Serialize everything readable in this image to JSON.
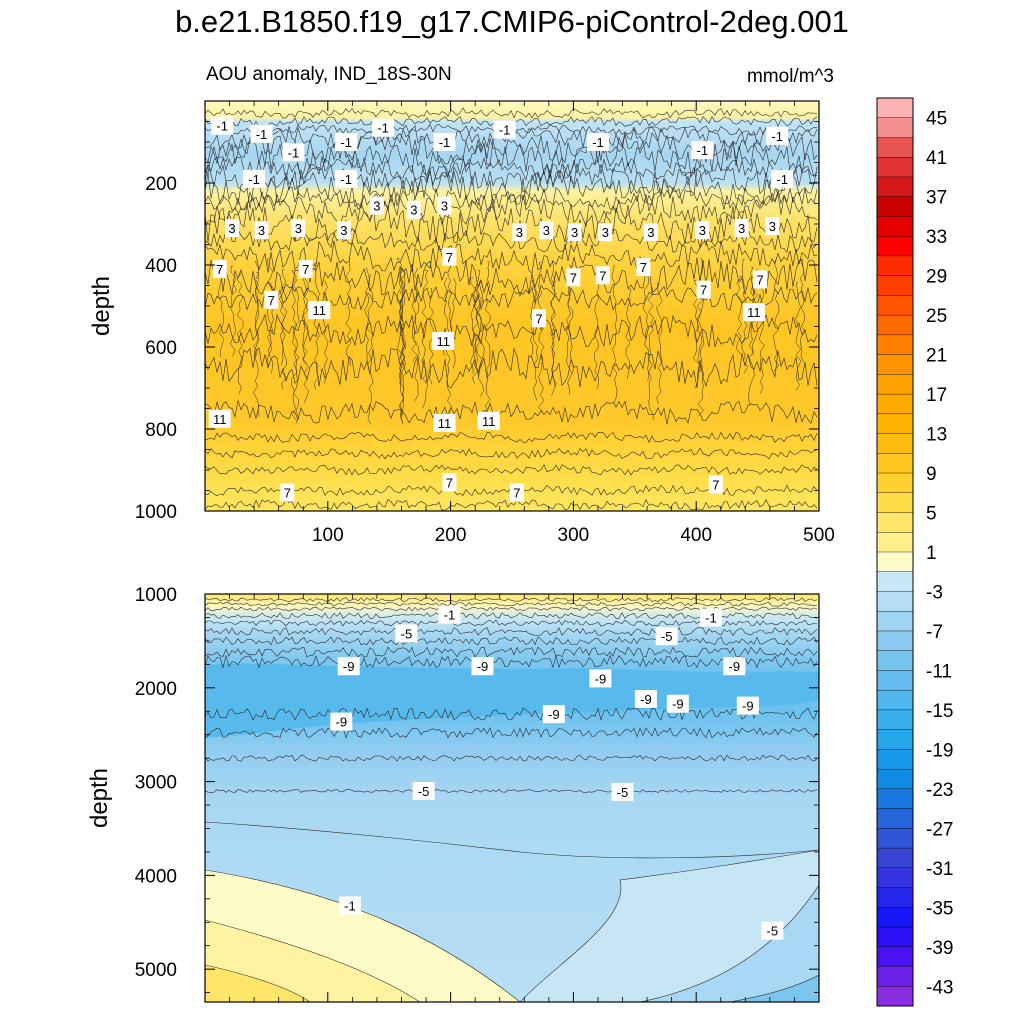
{
  "title": "b.e21.B1850.f19_g17.CMIP6-piControl-2deg.001",
  "subtitle": "AOU anomaly, IND_18S-30N",
  "units": "mmol/m^3",
  "chart_data": [
    {
      "type": "contour",
      "panel": "upper",
      "title": "AOU anomaly, IND_18S-30N",
      "xlabel": "",
      "ylabel": "depth",
      "xlim": [
        0,
        500
      ],
      "ylim": [
        1000,
        0
      ],
      "x_ticks": [
        100,
        200,
        300,
        400,
        500
      ],
      "x_tick_labels": [
        "100",
        "200",
        "300",
        "400",
        "500"
      ],
      "y_ticks": [
        200,
        400,
        600,
        800,
        1000
      ],
      "y_tick_labels": [
        "200",
        "400",
        "600",
        "800",
        "1000"
      ],
      "bands": [
        {
          "depth_top": 0,
          "depth_bottom": 45,
          "value": 1
        },
        {
          "depth_top": 45,
          "depth_bottom": 240,
          "value": -3
        },
        {
          "depth_top": 240,
          "depth_bottom": 330,
          "value": 5
        },
        {
          "depth_top": 330,
          "depth_bottom": 450,
          "value": 9
        },
        {
          "depth_top": 450,
          "depth_bottom": 830,
          "value": 12
        },
        {
          "depth_top": 830,
          "depth_bottom": 930,
          "value": 9
        },
        {
          "depth_top": 930,
          "depth_bottom": 1000,
          "value": 6
        }
      ],
      "contour_labels": [
        {
          "x": 14,
          "depth": 60,
          "text": "-1"
        },
        {
          "x": 46,
          "depth": 80,
          "text": "-1"
        },
        {
          "x": 72,
          "depth": 125,
          "text": "-1"
        },
        {
          "x": 115,
          "depth": 100,
          "text": "-1"
        },
        {
          "x": 145,
          "depth": 65,
          "text": "-1"
        },
        {
          "x": 195,
          "depth": 100,
          "text": "-1"
        },
        {
          "x": 244,
          "depth": 70,
          "text": "-1"
        },
        {
          "x": 320,
          "depth": 100,
          "text": "-1"
        },
        {
          "x": 405,
          "depth": 120,
          "text": "-1"
        },
        {
          "x": 466,
          "depth": 85,
          "text": "-1"
        },
        {
          "x": 40,
          "depth": 190,
          "text": "-1"
        },
        {
          "x": 115,
          "depth": 190,
          "text": "-1"
        },
        {
          "x": 470,
          "depth": 190,
          "text": "-1"
        },
        {
          "x": 140,
          "depth": 255,
          "text": "3"
        },
        {
          "x": 170,
          "depth": 265,
          "text": "3"
        },
        {
          "x": 195,
          "depth": 255,
          "text": "3"
        },
        {
          "x": 22,
          "depth": 310,
          "text": "3"
        },
        {
          "x": 46,
          "depth": 315,
          "text": "3"
        },
        {
          "x": 76,
          "depth": 310,
          "text": "3"
        },
        {
          "x": 113,
          "depth": 315,
          "text": "3"
        },
        {
          "x": 256,
          "depth": 320,
          "text": "3"
        },
        {
          "x": 278,
          "depth": 315,
          "text": "3"
        },
        {
          "x": 301,
          "depth": 320,
          "text": "3"
        },
        {
          "x": 326,
          "depth": 320,
          "text": "3"
        },
        {
          "x": 363,
          "depth": 320,
          "text": "3"
        },
        {
          "x": 405,
          "depth": 315,
          "text": "3"
        },
        {
          "x": 437,
          "depth": 310,
          "text": "3"
        },
        {
          "x": 462,
          "depth": 305,
          "text": "3"
        },
        {
          "x": 12,
          "depth": 410,
          "text": "7"
        },
        {
          "x": 82,
          "depth": 410,
          "text": "7"
        },
        {
          "x": 199,
          "depth": 380,
          "text": "7"
        },
        {
          "x": 300,
          "depth": 430,
          "text": "7"
        },
        {
          "x": 324,
          "depth": 425,
          "text": "7"
        },
        {
          "x": 357,
          "depth": 405,
          "text": "7"
        },
        {
          "x": 452,
          "depth": 435,
          "text": "7"
        },
        {
          "x": 272,
          "depth": 530,
          "text": "7"
        },
        {
          "x": 54,
          "depth": 485,
          "text": "7"
        },
        {
          "x": 406,
          "depth": 460,
          "text": "7"
        },
        {
          "x": 93,
          "depth": 510,
          "text": "11"
        },
        {
          "x": 194,
          "depth": 585,
          "text": "11"
        },
        {
          "x": 447,
          "depth": 515,
          "text": "11"
        },
        {
          "x": 195,
          "depth": 785,
          "text": "11"
        },
        {
          "x": 231,
          "depth": 780,
          "text": "11"
        },
        {
          "x": 12,
          "depth": 775,
          "text": "11"
        },
        {
          "x": 67,
          "depth": 955,
          "text": "7"
        },
        {
          "x": 199,
          "depth": 930,
          "text": "7"
        },
        {
          "x": 254,
          "depth": 955,
          "text": "7"
        },
        {
          "x": 416,
          "depth": 935,
          "text": "7"
        }
      ]
    },
    {
      "type": "contour",
      "panel": "lower",
      "title": "",
      "xlabel": "",
      "ylabel": "depth",
      "xlim": [
        0,
        500
      ],
      "ylim": [
        5350,
        1000
      ],
      "y_ticks": [
        1000,
        2000,
        3000,
        4000,
        5000
      ],
      "y_tick_labels": [
        "1000",
        "2000",
        "3000",
        "4000",
        "5000"
      ],
      "bands": [
        {
          "depth_top": 1000,
          "depth_bottom": 1150,
          "value": 1
        },
        {
          "depth_top": 1150,
          "depth_bottom": 1400,
          "value": -3
        },
        {
          "depth_top": 1400,
          "depth_bottom": 1650,
          "value": -7
        },
        {
          "depth_top": 1650,
          "depth_bottom": 2400,
          "value": -11
        },
        {
          "depth_top": 2400,
          "depth_bottom": 3200,
          "value": -7
        },
        {
          "depth_top": 3200,
          "depth_bottom": 5350,
          "value": -3
        }
      ],
      "contour_labels": [
        {
          "x": 199,
          "depth": 1220,
          "text": "-1"
        },
        {
          "x": 412,
          "depth": 1250,
          "text": "-1"
        },
        {
          "x": 164,
          "depth": 1420,
          "text": "-5"
        },
        {
          "x": 376,
          "depth": 1450,
          "text": "-5"
        },
        {
          "x": 117,
          "depth": 1770,
          "text": "-9"
        },
        {
          "x": 226,
          "depth": 1770,
          "text": "-9"
        },
        {
          "x": 322,
          "depth": 1900,
          "text": "-9"
        },
        {
          "x": 431,
          "depth": 1770,
          "text": "-9"
        },
        {
          "x": 359,
          "depth": 2120,
          "text": "-9"
        },
        {
          "x": 385,
          "depth": 2170,
          "text": "-9"
        },
        {
          "x": 442,
          "depth": 2190,
          "text": "-9"
        },
        {
          "x": 284,
          "depth": 2280,
          "text": "-9"
        },
        {
          "x": 111,
          "depth": 2360,
          "text": "-9"
        },
        {
          "x": 178,
          "depth": 3100,
          "text": "-5"
        },
        {
          "x": 340,
          "depth": 3110,
          "text": "-5"
        },
        {
          "x": 118,
          "depth": 4320,
          "text": "-1"
        },
        {
          "x": 462,
          "depth": 4590,
          "text": "-5"
        }
      ]
    },
    {
      "type": "colorbar",
      "levels": [
        45,
        43,
        41,
        39,
        37,
        35,
        33,
        31,
        29,
        27,
        25,
        23,
        21,
        19,
        17,
        15,
        13,
        11,
        9,
        7,
        5,
        3,
        1,
        -1,
        -3,
        -5,
        -7,
        -9,
        -11,
        -13,
        -15,
        -17,
        -19,
        -21,
        -23,
        -25,
        -27,
        -29,
        -31,
        -33,
        -35,
        -37,
        -39,
        -41,
        -43,
        -45
      ],
      "tick_labels": [
        "45",
        "41",
        "37",
        "33",
        "29",
        "25",
        "21",
        "17",
        "13",
        "9",
        "5",
        "1",
        "-3",
        "-7",
        "-11",
        "-15",
        "-19",
        "-23",
        "-27",
        "-31",
        "-35",
        "-39",
        "-43"
      ],
      "colors": [
        "#fdb3b3",
        "#f58f8f",
        "#e95555",
        "#dd3333",
        "#d41818",
        "#cc0000",
        "#e60000",
        "#ff0000",
        "#ff2a00",
        "#ff3f00",
        "#ff5500",
        "#ff6a00",
        "#ff7f00",
        "#ff9400",
        "#ffa100",
        "#ffaa00",
        "#ffb300",
        "#ffbc10",
        "#ffc520",
        "#ffd030",
        "#ffdb48",
        "#ffe668",
        "#fff08a",
        "#fffbc8",
        "#c8e8f6",
        "#b4def4",
        "#a0d4f2",
        "#8ccbf0",
        "#78c2ee",
        "#63bbee",
        "#4fb6ee",
        "#3aaeec",
        "#25a6ea",
        "#1599e8",
        "#0f8be4",
        "#1a78e0",
        "#2566dc",
        "#2f55d8",
        "#3844d4",
        "#3333e0",
        "#2525ec",
        "#1717f5",
        "#2a10f5",
        "#4a12f0",
        "#6c1fe8",
        "#8a2ce0"
      ]
    }
  ]
}
